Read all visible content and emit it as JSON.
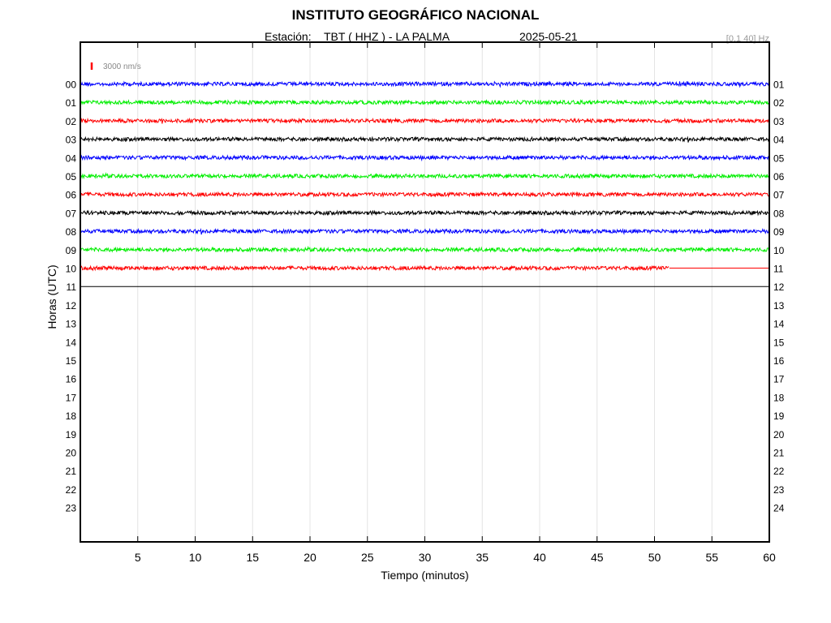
{
  "header": {
    "title": "INSTITUTO GEOGRÁFICO NACIONAL",
    "station_prefix": "Estación:",
    "station": "TBT ( HHZ ) - LA PALMA",
    "date": "2025-05-21",
    "filter": "[0.1 40] Hz"
  },
  "chart_data": {
    "type": "line",
    "title": "INSTITUTO GEOGRÁFICO NACIONAL",
    "xlabel": "Tiempo (minutos)",
    "ylabel": "Horas (UTC)",
    "xlim": [
      0,
      60
    ],
    "x_ticks": [
      "5",
      "10",
      "15",
      "20",
      "25",
      "30",
      "35",
      "40",
      "45",
      "50",
      "55",
      "60"
    ],
    "y_ticks_left": [
      "00",
      "01",
      "02",
      "03",
      "04",
      "05",
      "06",
      "07",
      "08",
      "09",
      "10",
      "11",
      "12",
      "13",
      "14",
      "15",
      "16",
      "17",
      "18",
      "19",
      "20",
      "21",
      "22",
      "23"
    ],
    "y_ticks_right": [
      "01",
      "02",
      "03",
      "04",
      "05",
      "06",
      "07",
      "08",
      "09",
      "10",
      "11",
      "12",
      "13",
      "14",
      "15",
      "16",
      "17",
      "18",
      "19",
      "20",
      "21",
      "22",
      "23",
      "24"
    ],
    "scale_label": "3000 nm/s",
    "scale_color": "#ff0000",
    "grid": true,
    "color_cycle": [
      "#0000ff",
      "#00ee00",
      "#ff0000",
      "#000000"
    ],
    "series": [
      {
        "hour": "00",
        "color": "#0000ff",
        "recorded_minutes": 60
      },
      {
        "hour": "01",
        "color": "#00ee00",
        "recorded_minutes": 60
      },
      {
        "hour": "02",
        "color": "#ff0000",
        "recorded_minutes": 60
      },
      {
        "hour": "03",
        "color": "#000000",
        "recorded_minutes": 60
      },
      {
        "hour": "04",
        "color": "#0000ff",
        "recorded_minutes": 60
      },
      {
        "hour": "05",
        "color": "#00ee00",
        "recorded_minutes": 60
      },
      {
        "hour": "06",
        "color": "#ff0000",
        "recorded_minutes": 60
      },
      {
        "hour": "07",
        "color": "#000000",
        "recorded_minutes": 60
      },
      {
        "hour": "08",
        "color": "#0000ff",
        "recorded_minutes": 60
      },
      {
        "hour": "09",
        "color": "#00ee00",
        "recorded_minutes": 60
      },
      {
        "hour": "10",
        "color": "#ff0000",
        "recorded_minutes": 51.3,
        "flat_to_minutes": 60
      },
      {
        "hour": "11",
        "color": "#000000",
        "recorded_minutes": 0,
        "flat_to_minutes": 60
      }
    ]
  }
}
